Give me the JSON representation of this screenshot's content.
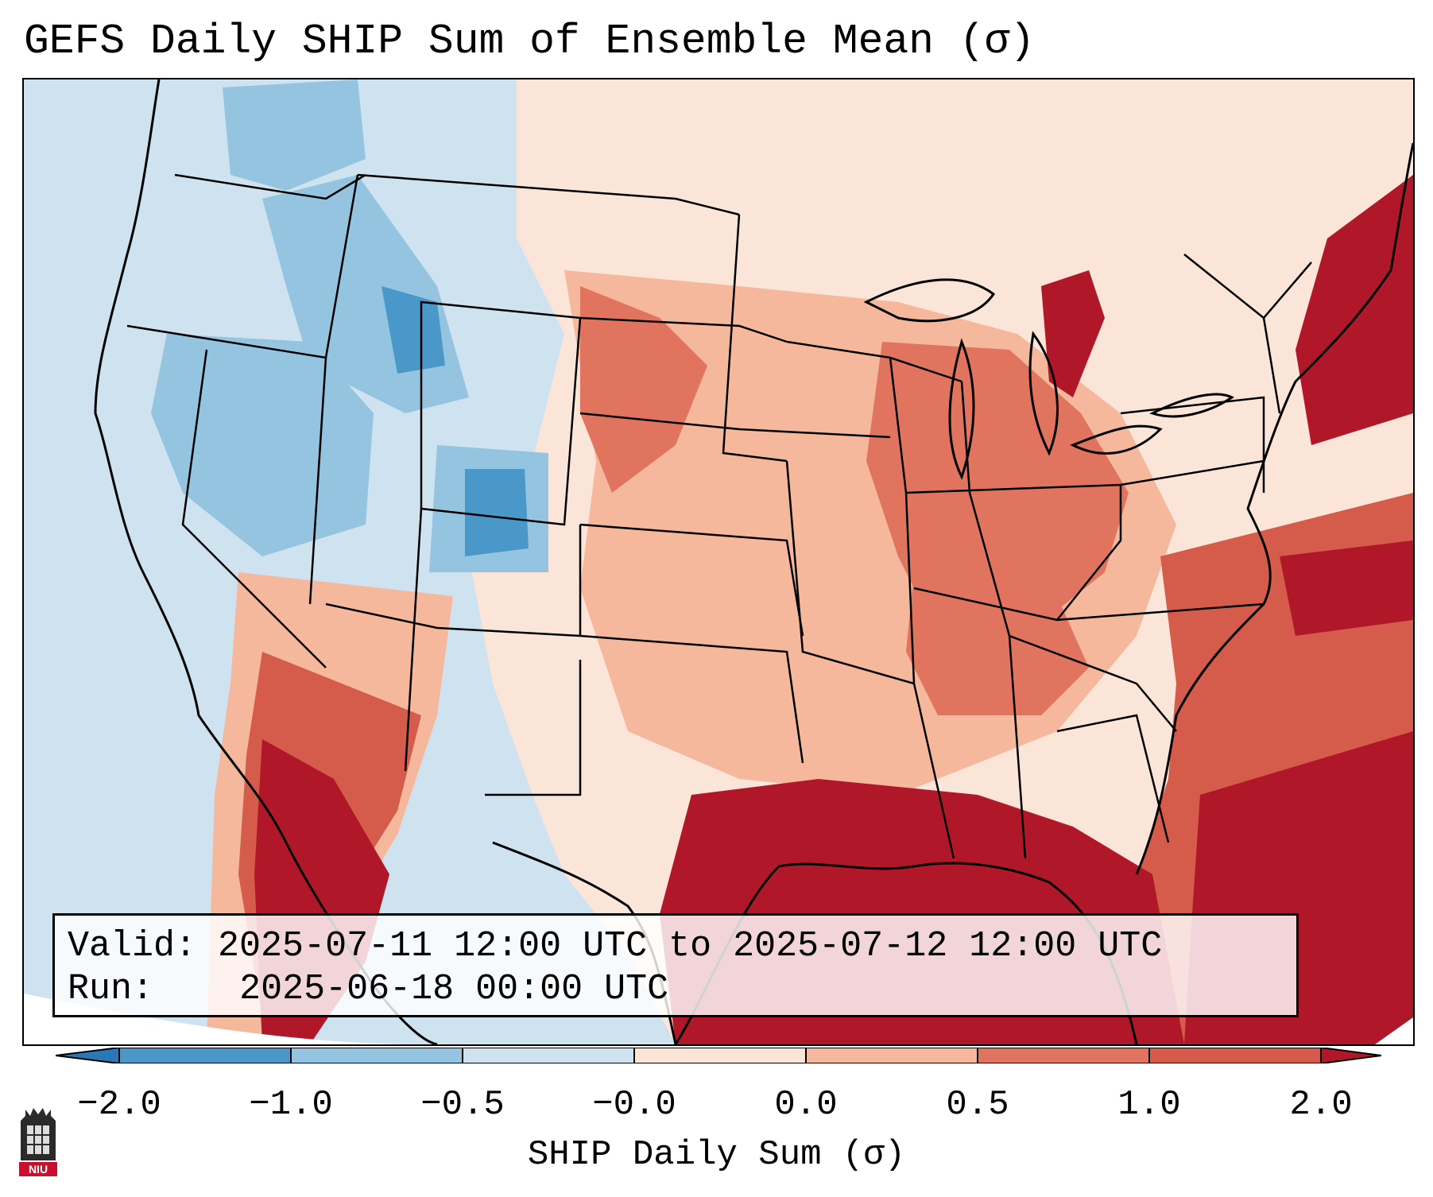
{
  "title": "GEFS Daily SHIP Sum of Ensemble Mean (σ)",
  "info": {
    "valid_label": "Valid:",
    "valid_value": "2025-07-11 12:00 UTC to 2025-07-12 12:00 UTC",
    "run_label": "Run:",
    "run_value": "2025-06-18 00:00 UTC"
  },
  "colorbar": {
    "label": "SHIP Daily Sum (σ)",
    "ticks": [
      "−2.0",
      "−1.0",
      "−0.5",
      "−0.0",
      "0.0",
      "0.5",
      "1.0",
      "2.0"
    ],
    "colors": [
      "#2b78b8",
      "#4a98c9",
      "#94c4df",
      "#cfe2ef",
      "#fbe5d8",
      "#f5b89c",
      "#e0745f",
      "#d55c4a",
      "#b0182a"
    ],
    "extend": "both"
  },
  "logo": {
    "text": "NIU",
    "icon": "niu-logo-icon"
  },
  "map": {
    "region": "Contiguous United States",
    "strong_positive_regions": [
      "Gulf of Mexico",
      "Western Atlantic",
      "Baja California",
      "Northeast"
    ],
    "negative_regions": [
      "Idaho",
      "Colorado",
      "Nevada"
    ]
  }
}
